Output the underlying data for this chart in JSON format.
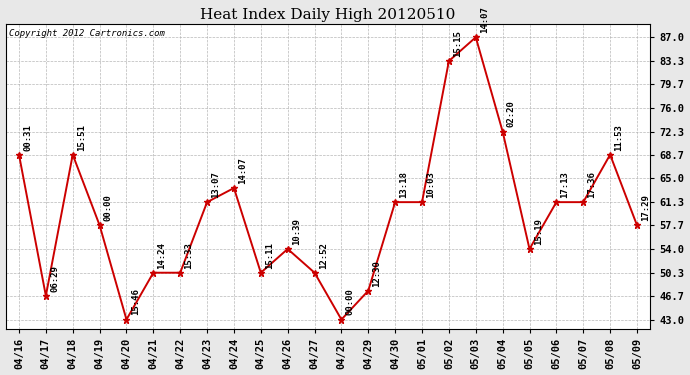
{
  "title": "Heat Index Daily High 20120510",
  "copyright": "Copyright 2012 Cartronics.com",
  "x_labels": [
    "04/16",
    "04/17",
    "04/18",
    "04/19",
    "04/20",
    "04/21",
    "04/22",
    "04/23",
    "04/24",
    "04/25",
    "04/26",
    "04/27",
    "04/28",
    "04/29",
    "04/30",
    "05/01",
    "05/02",
    "05/03",
    "05/04",
    "05/05",
    "05/06",
    "05/07",
    "05/08",
    "05/09"
  ],
  "y_values": [
    68.7,
    46.7,
    68.7,
    57.7,
    43.0,
    50.3,
    50.3,
    61.3,
    63.5,
    50.3,
    54.0,
    50.3,
    43.0,
    47.5,
    61.3,
    61.3,
    83.3,
    87.0,
    72.3,
    54.0,
    61.3,
    61.3,
    68.7,
    57.7
  ],
  "point_labels": [
    "00:31",
    "06:29",
    "15:51",
    "00:00",
    "15:46",
    "14:24",
    "15:33",
    "13:07",
    "14:07",
    "15:11",
    "10:39",
    "12:52",
    "00:00",
    "12:30",
    "13:18",
    "10:03",
    "15:15",
    "14:07",
    "02:20",
    "15:19",
    "17:13",
    "17:36",
    "11:53",
    "17:29"
  ],
  "y_ticks": [
    43.0,
    46.7,
    50.3,
    54.0,
    57.7,
    61.3,
    65.0,
    68.7,
    72.3,
    76.0,
    79.7,
    83.3,
    87.0
  ],
  "line_color": "#cc0000",
  "marker_color": "#cc0000",
  "bg_color": "#e8e8e8",
  "plot_bg_color": "#ffffff",
  "grid_color": "#b0b0b0",
  "title_fontsize": 11,
  "copyright_fontsize": 6.5,
  "label_fontsize": 6.5,
  "tick_fontsize": 7.5
}
